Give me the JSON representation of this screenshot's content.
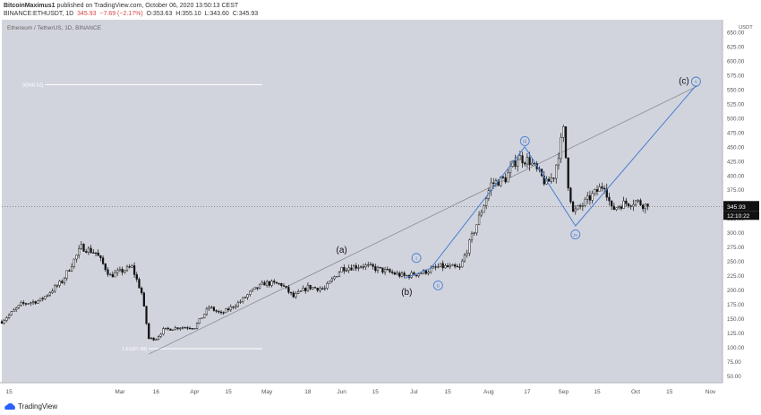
{
  "header": {
    "author": "BitcoinMaximus1",
    "published": "published on TradingView.com, October 06, 2020 13:50:13 CEST",
    "symbol": "BINANCE:ETHUSDT, 1D",
    "last": "345.93",
    "change": "−7.69 (−2.17%)",
    "open": "O:353.63",
    "high": "H:355.10",
    "low": "L:343.60",
    "close": "C:345.93"
  },
  "footer": {
    "brand": "TradingView"
  },
  "colors": {
    "background": "#d2d4dd",
    "candle": "#111111",
    "wave_line": "#4a7fd1",
    "trend_line": "#8a8c92",
    "fib_line": "#ffffff"
  },
  "chart_data": {
    "type": "candlestick",
    "title": "Ethereum / TetherUS, 1D, BINANCE",
    "y_unit": "USDT",
    "ylim": [
      38,
      672
    ],
    "y_scale": "linear",
    "x_range": [
      "2020-01-12",
      "2020-11-06"
    ],
    "y_ticks": [
      "50.00",
      "75.00",
      "100.00",
      "125.00",
      "150.00",
      "175.00",
      "200.00",
      "225.00",
      "250.00",
      "275.00",
      "300.00",
      "325.00",
      "350.00",
      "375.00",
      "400.00",
      "425.00",
      "450.00",
      "475.00",
      "500.00",
      "525.00",
      "550.00",
      "575.00",
      "600.00",
      "625.00",
      "650.00"
    ],
    "x_ticks": [
      {
        "label": "15",
        "date": "2020-01-15"
      },
      {
        "label": "Mar",
        "date": "2020-03-01"
      },
      {
        "label": "16",
        "date": "2020-03-16"
      },
      {
        "label": "Apr",
        "date": "2020-04-01"
      },
      {
        "label": "15",
        "date": "2020-04-15"
      },
      {
        "label": "May",
        "date": "2020-05-01"
      },
      {
        "label": "18",
        "date": "2020-05-18"
      },
      {
        "label": "Jun",
        "date": "2020-06-01"
      },
      {
        "label": "15",
        "date": "2020-06-15"
      },
      {
        "label": "Jul",
        "date": "2020-07-01"
      },
      {
        "label": "15",
        "date": "2020-07-15"
      },
      {
        "label": "Aug",
        "date": "2020-08-01"
      },
      {
        "label": "17",
        "date": "2020-08-17"
      },
      {
        "label": "Sep",
        "date": "2020-09-01"
      },
      {
        "label": "15",
        "date": "2020-09-15"
      },
      {
        "label": "Oct",
        "date": "2020-10-01"
      },
      {
        "label": "15",
        "date": "2020-10-15"
      },
      {
        "label": "Nov",
        "date": "2020-11-01"
      }
    ],
    "price_anchors": [
      [
        "2020-01-12",
        145
      ],
      [
        "2020-01-20",
        175
      ],
      [
        "2020-01-28",
        182
      ],
      [
        "2020-02-06",
        215
      ],
      [
        "2020-02-14",
        275
      ],
      [
        "2020-02-20",
        265
      ],
      [
        "2020-02-26",
        225
      ],
      [
        "2020-03-06",
        240
      ],
      [
        "2020-03-10",
        195
      ],
      [
        "2020-03-13",
        115
      ],
      [
        "2020-03-16",
        115
      ],
      [
        "2020-03-19",
        130
      ],
      [
        "2020-03-26",
        135
      ],
      [
        "2020-04-01",
        135
      ],
      [
        "2020-04-07",
        170
      ],
      [
        "2020-04-12",
        158
      ],
      [
        "2020-04-20",
        180
      ],
      [
        "2020-04-24",
        195
      ],
      [
        "2020-04-30",
        212
      ],
      [
        "2020-05-07",
        210
      ],
      [
        "2020-05-12",
        188
      ],
      [
        "2020-05-18",
        205
      ],
      [
        "2020-05-25",
        202
      ],
      [
        "2020-06-01",
        238
      ],
      [
        "2020-06-10",
        243
      ],
      [
        "2020-06-20",
        232
      ],
      [
        "2020-06-27",
        224
      ],
      [
        "2020-07-04",
        230
      ],
      [
        "2020-07-12",
        241
      ],
      [
        "2020-07-20",
        238
      ],
      [
        "2020-07-23",
        270
      ],
      [
        "2020-07-27",
        315
      ],
      [
        "2020-08-02",
        385
      ],
      [
        "2020-08-08",
        395
      ],
      [
        "2020-08-13",
        432
      ],
      [
        "2020-08-18",
        425
      ],
      [
        "2020-08-25",
        385
      ],
      [
        "2020-08-28",
        400
      ],
      [
        "2020-09-01",
        478
      ],
      [
        "2020-09-03",
        385
      ],
      [
        "2020-09-05",
        335
      ],
      [
        "2020-09-08",
        345
      ],
      [
        "2020-09-13",
        365
      ],
      [
        "2020-09-18",
        385
      ],
      [
        "2020-09-21",
        340
      ],
      [
        "2020-09-25",
        350
      ],
      [
        "2020-10-01",
        355
      ],
      [
        "2020-10-06",
        346
      ]
    ],
    "last_price": {
      "value": 345.93,
      "label": "345.93",
      "countdown": "12:10:22"
    },
    "fib_levels": [
      {
        "label": "0(558.52)",
        "value": 558.52,
        "from": "2020-01-30",
        "to": "2020-04-29"
      },
      {
        "label": "1.61(97.48)",
        "value": 97.48,
        "from": "2020-03-13",
        "to": "2020-04-29"
      }
    ],
    "wave_path": [
      [
        "2020-06-27",
        220
      ],
      [
        "2020-07-08",
        238
      ],
      [
        "2020-08-16",
        450
      ],
      [
        "2020-09-06",
        312
      ],
      [
        "2020-10-26",
        557
      ]
    ],
    "trend_line": [
      [
        "2020-03-13",
        88
      ],
      [
        "2020-10-27",
        557
      ]
    ],
    "wave_labels": [
      {
        "text": "(a)",
        "date": "2020-06-01",
        "value": 270,
        "circle": false
      },
      {
        "text": "(b)",
        "date": "2020-06-28",
        "value": 196,
        "circle": false
      },
      {
        "text": "(c)",
        "date": "2020-10-21",
        "value": 565,
        "circle": false
      },
      {
        "text": "i",
        "date": "2020-07-02",
        "value": 256,
        "circle": true
      },
      {
        "text": "ii",
        "date": "2020-07-11",
        "value": 208,
        "circle": true
      },
      {
        "text": "iii",
        "date": "2020-08-16",
        "value": 460,
        "circle": true
      },
      {
        "text": "iv",
        "date": "2020-09-06",
        "value": 297,
        "circle": true
      },
      {
        "text": "v",
        "date": "2020-10-26",
        "value": 564,
        "circle": true
      }
    ]
  }
}
